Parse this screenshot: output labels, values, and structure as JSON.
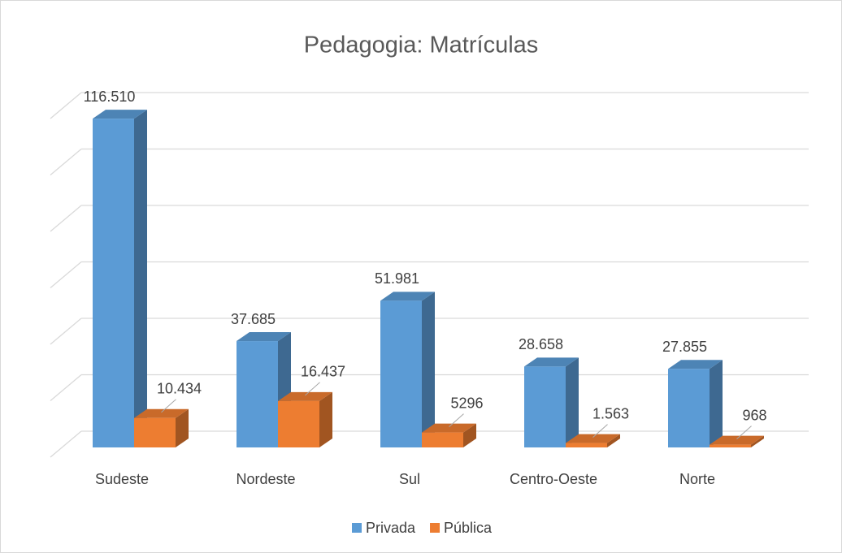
{
  "chart_data": {
    "type": "bar3d",
    "title": "Pedagogia: Matrículas",
    "categories": [
      "Sudeste",
      "Nordeste",
      "Sul",
      "Centro-Oeste",
      "Norte"
    ],
    "series": [
      {
        "name": "Privada",
        "color": "#5b9bd5",
        "values": [
          116510,
          37685,
          51981,
          28658,
          27855
        ],
        "value_labels": [
          "116.510",
          "37.685",
          "51.981",
          "28.658",
          "27.855"
        ]
      },
      {
        "name": "Pública",
        "color": "#ed7d31",
        "values": [
          10434,
          16437,
          5296,
          1563,
          968
        ],
        "value_labels": [
          "10.434",
          "16.437",
          "5296",
          "1.563",
          "968"
        ]
      }
    ],
    "ylim": [
      0,
      120000
    ],
    "yticks": [
      0,
      20000,
      40000,
      60000,
      80000,
      100000,
      120000
    ],
    "grid": true,
    "legend": "bottom"
  }
}
